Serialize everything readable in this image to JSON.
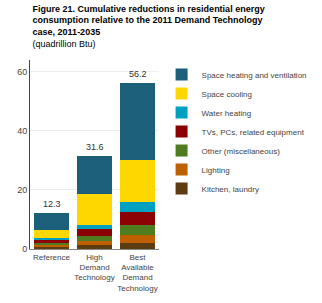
{
  "chart_data": {
    "type": "bar",
    "stacked": true,
    "title": "Figure 21. Cumulative reductions in residential energy\nconsumption relative to the 2011 Demand Technology\ncase, 2011-2035",
    "subtitle": "(quadrillion Btu)",
    "categories": [
      "Reference",
      "High\nDemand\nTechnology",
      "Best\nAvailable\nDemand\nTechnology"
    ],
    "series": [
      {
        "name": "Kitchen, laundry",
        "color": "#5c3d11",
        "values": [
          0.7,
          1.4,
          2.2
        ]
      },
      {
        "name": "Lighting",
        "color": "#bf6000",
        "values": [
          0.7,
          1.4,
          2.5
        ]
      },
      {
        "name": "Other (miscellaneous)",
        "color": "#4e7c1f",
        "values": [
          0.8,
          1.6,
          3.5
        ]
      },
      {
        "name": "TVs, PCs, related equipment",
        "color": "#8b0000",
        "values": [
          1.1,
          2.5,
          4.5
        ]
      },
      {
        "name": "Water heating",
        "color": "#00a0c0",
        "values": [
          0.5,
          1.2,
          3.3
        ]
      },
      {
        "name": "Space cooling",
        "color": "#ffd700",
        "values": [
          2.5,
          10.5,
          14.2
        ]
      },
      {
        "name": "Space heating and ventilation",
        "color": "#1c5f7a",
        "values": [
          6.0,
          13.0,
          26.0
        ]
      }
    ],
    "totals": [
      12.3,
      31.6,
      56.2
    ],
    "ylim": [
      0,
      64
    ],
    "yticks": [
      0,
      20,
      40,
      60
    ],
    "grid": true,
    "legend": "right"
  }
}
